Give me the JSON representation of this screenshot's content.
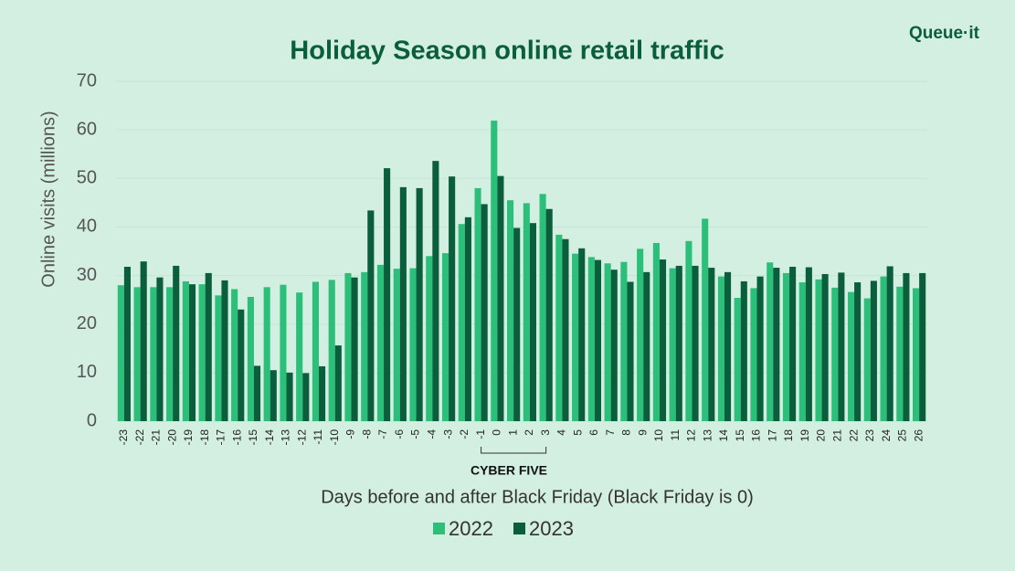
{
  "chart_data": {
    "type": "bar",
    "title": "Holiday Season online retail traffic",
    "brand": "Queue·it",
    "x_label": "Days before and after Black Friday (Black Friday is 0)",
    "y_label": "Online visits (millions)",
    "annotation": "CYBER FIVE",
    "categories": [
      "-23",
      "-22",
      "-21",
      "-20",
      "-19",
      "-18",
      "-17",
      "-16",
      "-15",
      "-14",
      "-13",
      "-12",
      "-11",
      "-10",
      "-9",
      "-8",
      "-7",
      "-6",
      "-5",
      "-4",
      "-3",
      "-2",
      "-1",
      "0",
      "1",
      "2",
      "3",
      "4",
      "5",
      "6",
      "7",
      "8",
      "9",
      "10",
      "11",
      "12",
      "13",
      "14",
      "15",
      "16",
      "17",
      "18",
      "19",
      "20",
      "21",
      "22",
      "23",
      "24",
      "25",
      "26"
    ],
    "series": [
      {
        "name": "2022",
        "color": "#2bbf7a",
        "values": [
          28,
          27.6,
          27.6,
          27.6,
          28.8,
          28.2,
          25.9,
          27.2,
          25.6,
          27.6,
          28.1,
          26.5,
          28.7,
          29.1,
          30.5,
          30.7,
          32.2,
          31.4,
          31.5,
          34,
          34.6,
          40.6,
          48,
          61.9,
          45.5,
          44.9,
          46.8,
          38.4,
          34.5,
          33.8,
          32.5,
          32.8,
          35.5,
          36.7,
          31.5,
          37.1,
          41.7,
          29.8,
          25.4,
          27.4,
          32.7,
          30.5,
          28.6,
          29.2,
          27.5,
          26.6,
          25.3,
          29.8,
          27.7,
          27.4
        ]
      },
      {
        "name": "2023",
        "color": "#0b5e3c",
        "values": [
          31.8,
          32.9,
          29.6,
          32,
          28.2,
          30.5,
          29,
          23,
          11.4,
          10.5,
          10,
          9.9,
          11.3,
          15.6,
          29.6,
          43.4,
          52.1,
          48.2,
          48,
          53.6,
          50.4,
          42,
          44.7,
          50.5,
          39.8,
          40.8,
          43.7,
          37.5,
          35.6,
          33.2,
          31.2,
          28.7,
          30.7,
          33.3,
          32,
          32,
          31.6,
          30.7,
          28.8,
          29.8,
          31.6,
          31.8,
          31.7,
          30.3,
          30.6,
          28.6,
          28.9,
          31.9,
          30.5,
          30.5
        ]
      }
    ],
    "ylim": [
      0,
      70
    ],
    "yticks": [
      0,
      10,
      20,
      30,
      40,
      50,
      60,
      70
    ],
    "grid": true
  }
}
